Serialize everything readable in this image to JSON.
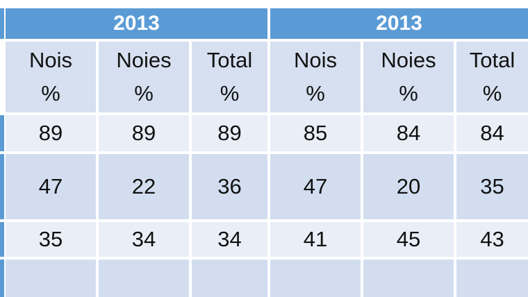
{
  "table": {
    "groups": [
      {
        "year": "2013"
      },
      {
        "year": "2013"
      }
    ],
    "column_headers": [
      {
        "line1": "Nois",
        "line2": "%"
      },
      {
        "line1": "Noies",
        "line2": "%"
      },
      {
        "line1": "Total",
        "line2": "%"
      },
      {
        "line1": "Nois",
        "line2": "%"
      },
      {
        "line1": "Noies",
        "line2": "%"
      },
      {
        "line1": "Total",
        "line2": "%"
      }
    ],
    "rows": [
      [
        "89",
        "89",
        "89",
        "85",
        "84",
        "84"
      ],
      [
        "47",
        "22",
        "36",
        "47",
        "20",
        "35"
      ],
      [
        "35",
        "34",
        "34",
        "41",
        "45",
        "43"
      ],
      [
        "",
        "",
        "",
        "",
        "",
        ""
      ]
    ]
  },
  "colors": {
    "header_blue": "#5b9bd5",
    "row_light": "#e9eef7",
    "row_dark": "#d2def0"
  }
}
